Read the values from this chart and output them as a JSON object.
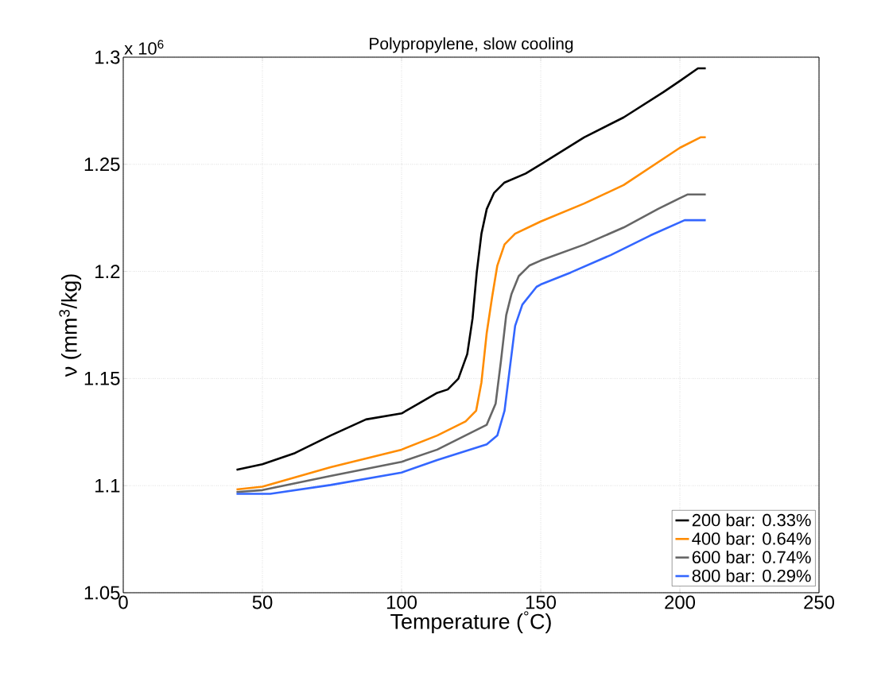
{
  "chart_data": {
    "type": "line",
    "title": "Polypropylene, slow cooling",
    "xlabel": "Temperature ($^{°}$C)",
    "ylabel": "ν (mm$^{3}$/kg)",
    "annotations": [
      "x 10$^{6}$"
    ],
    "xlim": [
      0,
      250
    ],
    "xticks": [
      0,
      50,
      100,
      150,
      200,
      250
    ],
    "ylim": [
      1.05,
      1.3
    ],
    "yticks": [
      1.05,
      1.1,
      1.15,
      1.2,
      1.25,
      1.3
    ],
    "grid": true,
    "legend": "bottom right",
    "line_style": "solid",
    "series": [
      {
        "name": "200 bar: 0.33%",
        "color": "#000000",
        "x": [
          40.7,
          50,
          61.7,
          74.5,
          87.2,
          100,
          112.8,
          116.6,
          120.4,
          123.6,
          125.5,
          127,
          128.7,
          130.6,
          133.2,
          137,
          144.6,
          150,
          165.6,
          179.8,
          194.1,
          200,
          206.5,
          209.3
        ],
        "values": [
          1.1074,
          1.11,
          1.1152,
          1.1234,
          1.1309,
          1.1337,
          1.1433,
          1.1449,
          1.1499,
          1.1614,
          1.178,
          1.1994,
          1.2176,
          1.2291,
          1.2366,
          1.2415,
          1.2457,
          1.25,
          1.2626,
          1.2719,
          1.2837,
          1.2889,
          1.2948,
          1.2948
        ]
      },
      {
        "name": "400 bar: 0.64%",
        "color": "#ff8c00",
        "x": [
          40.7,
          50,
          74.5,
          100,
          112.8,
          123,
          126.8,
          128.7,
          130.6,
          132.5,
          134.4,
          137,
          140.8,
          150,
          165.6,
          179.8,
          200,
          207.4,
          209.3
        ],
        "values": [
          1.0982,
          1.0995,
          1.1086,
          1.1168,
          1.1234,
          1.13,
          1.135,
          1.1482,
          1.1713,
          1.1878,
          1.2027,
          1.2126,
          1.2176,
          1.2233,
          1.2317,
          1.2403,
          1.2577,
          1.2626,
          1.2626
        ]
      },
      {
        "name": "600 bar: 0.74%",
        "color": "#666666",
        "x": [
          40.7,
          50,
          74.5,
          100,
          112.8,
          130.6,
          133.8,
          135.7,
          137.6,
          139.5,
          142.1,
          145.9,
          150,
          165.6,
          179.8,
          192.2,
          200,
          202.7,
          209.3
        ],
        "values": [
          1.097,
          1.0979,
          1.1045,
          1.1111,
          1.1168,
          1.1284,
          1.1383,
          1.1581,
          1.1796,
          1.1895,
          1.1978,
          1.2027,
          1.2051,
          1.2125,
          1.2205,
          1.2292,
          1.2342,
          1.2359,
          1.2359
        ]
      },
      {
        "name": "800 bar: 0.29%",
        "color": "#3366ff",
        "x": [
          40.7,
          52.8,
          74.5,
          100,
          112.8,
          130.6,
          134.4,
          137,
          138.9,
          140.8,
          143.4,
          148.5,
          150,
          160.8,
          175.1,
          189.4,
          201.7,
          209.3
        ],
        "values": [
          1.0962,
          1.0962,
          1.1003,
          1.1061,
          1.1119,
          1.1193,
          1.1234,
          1.135,
          1.1548,
          1.1746,
          1.1845,
          1.1928,
          1.1939,
          1.1995,
          1.2076,
          1.2168,
          1.2239,
          1.2239
        ]
      }
    ]
  }
}
